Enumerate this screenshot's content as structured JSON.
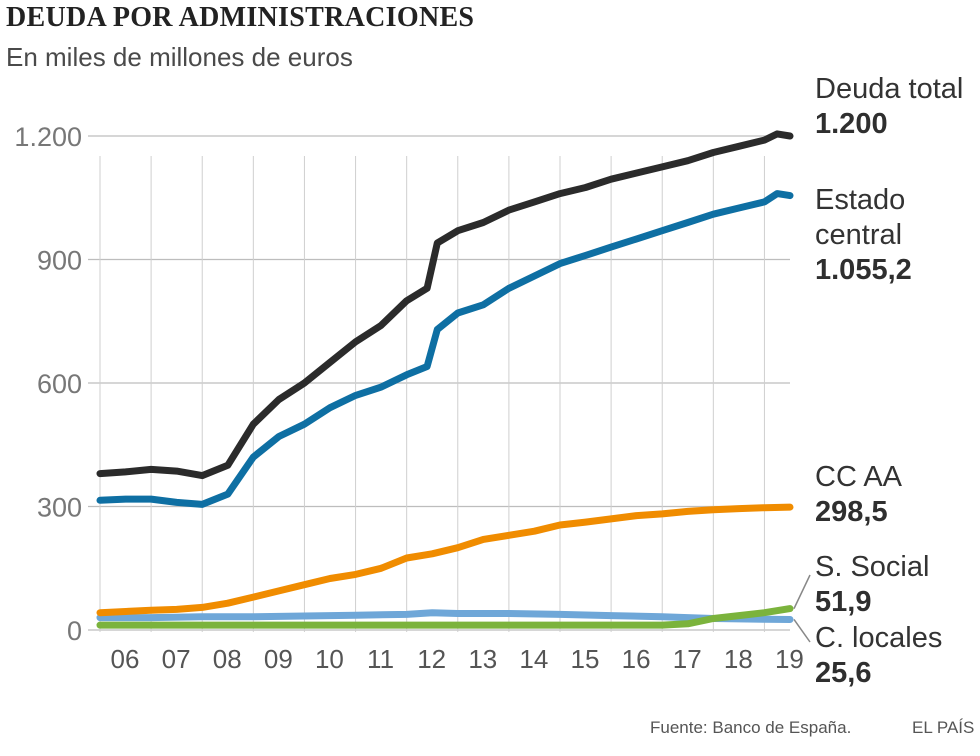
{
  "header": {
    "title": "DEUDA POR ADMINISTRACIONES",
    "subtitle": "En miles de millones de euros"
  },
  "footer": {
    "source": "Fuente: Banco de España.",
    "brand": "EL PAÍS"
  },
  "colors": {
    "total": "#2b2b2b",
    "estado": "#0e6fa3",
    "ccaa": "#f08c00",
    "ssocial": "#7bb33c",
    "locales": "#6fa7d8",
    "grid": "#bdbdbd"
  },
  "labels": {
    "total": {
      "line1": "Deuda total",
      "value": "1.200"
    },
    "estado": {
      "line1": "Estado",
      "line2": "central",
      "value": "1.055,2"
    },
    "ccaa": {
      "line1": "CC AA",
      "value": "298,5"
    },
    "ssocial": {
      "line1": "S. Social",
      "value": "51,9"
    },
    "locales": {
      "line1": "C. locales",
      "value": "25,6"
    }
  },
  "chart_data": {
    "type": "line",
    "title": "DEUDA POR ADMINISTRACIONES",
    "subtitle": "En miles de millones de euros",
    "xlabel": "",
    "ylabel": "",
    "ylim": [
      0,
      1200
    ],
    "xlim": [
      2006,
      2019.5
    ],
    "yticks": [
      0,
      300,
      600,
      900,
      1200
    ],
    "ytick_labels": [
      "0",
      "300",
      "600",
      "900",
      "1.200"
    ],
    "xtick_labels": [
      "06",
      "07",
      "08",
      "09",
      "10",
      "11",
      "12",
      "13",
      "14",
      "15",
      "16",
      "17",
      "18",
      "19"
    ],
    "grid": true,
    "series": [
      {
        "name": "Deuda total",
        "key": "total",
        "x": [
          2006.0,
          2006.5,
          2007.0,
          2007.5,
          2008.0,
          2008.5,
          2009.0,
          2009.5,
          2010.0,
          2010.5,
          2011.0,
          2011.5,
          2012.0,
          2012.4,
          2012.6,
          2013.0,
          2013.5,
          2014.0,
          2014.5,
          2015.0,
          2015.5,
          2016.0,
          2016.5,
          2017.0,
          2017.5,
          2018.0,
          2018.5,
          2019.0,
          2019.25,
          2019.5
        ],
        "values": [
          380,
          384,
          390,
          386,
          375,
          400,
          500,
          560,
          600,
          650,
          700,
          740,
          800,
          830,
          940,
          970,
          990,
          1020,
          1040,
          1060,
          1075,
          1095,
          1110,
          1125,
          1140,
          1160,
          1175,
          1190,
          1205,
          1200
        ]
      },
      {
        "name": "Estado central",
        "key": "estado",
        "x": [
          2006.0,
          2006.5,
          2007.0,
          2007.5,
          2008.0,
          2008.5,
          2009.0,
          2009.5,
          2010.0,
          2010.5,
          2011.0,
          2011.5,
          2012.0,
          2012.4,
          2012.6,
          2013.0,
          2013.5,
          2014.0,
          2014.5,
          2015.0,
          2015.5,
          2016.0,
          2016.5,
          2017.0,
          2017.5,
          2018.0,
          2018.5,
          2019.0,
          2019.25,
          2019.5
        ],
        "values": [
          315,
          318,
          318,
          310,
          305,
          330,
          420,
          470,
          500,
          540,
          570,
          590,
          620,
          640,
          730,
          770,
          790,
          830,
          860,
          890,
          910,
          930,
          950,
          970,
          990,
          1010,
          1025,
          1040,
          1060,
          1055.2
        ]
      },
      {
        "name": "CC AA",
        "key": "ccaa",
        "x": [
          2006.0,
          2006.5,
          2007.0,
          2007.5,
          2008.0,
          2008.5,
          2009.0,
          2009.5,
          2010.0,
          2010.5,
          2011.0,
          2011.5,
          2012.0,
          2012.5,
          2013.0,
          2013.5,
          2014.0,
          2014.5,
          2015.0,
          2015.5,
          2016.0,
          2016.5,
          2017.0,
          2017.5,
          2018.0,
          2018.5,
          2019.0,
          2019.5
        ],
        "values": [
          42,
          45,
          48,
          50,
          55,
          65,
          80,
          95,
          110,
          125,
          135,
          150,
          175,
          185,
          200,
          220,
          230,
          240,
          255,
          262,
          270,
          278,
          282,
          288,
          292,
          295,
          297,
          298.5
        ]
      },
      {
        "name": "S. Social",
        "key": "ssocial",
        "x": [
          2006.0,
          2007.0,
          2008.0,
          2009.0,
          2010.0,
          2011.0,
          2012.0,
          2013.0,
          2014.0,
          2015.0,
          2016.0,
          2017.0,
          2017.5,
          2018.0,
          2018.5,
          2019.0,
          2019.5
        ],
        "values": [
          12,
          12,
          12,
          12,
          12,
          12,
          12,
          12,
          12,
          12,
          12,
          12,
          15,
          28,
          35,
          42,
          51.9
        ]
      },
      {
        "name": "C. locales",
        "key": "locales",
        "x": [
          2006.0,
          2007.0,
          2008.0,
          2009.0,
          2010.0,
          2011.0,
          2012.0,
          2012.5,
          2013.0,
          2014.0,
          2015.0,
          2016.0,
          2017.0,
          2018.0,
          2018.5,
          2019.0,
          2019.5
        ],
        "values": [
          30,
          30,
          32,
          32,
          34,
          36,
          38,
          42,
          40,
          40,
          38,
          35,
          32,
          28,
          27,
          26,
          25.6
        ]
      }
    ]
  }
}
